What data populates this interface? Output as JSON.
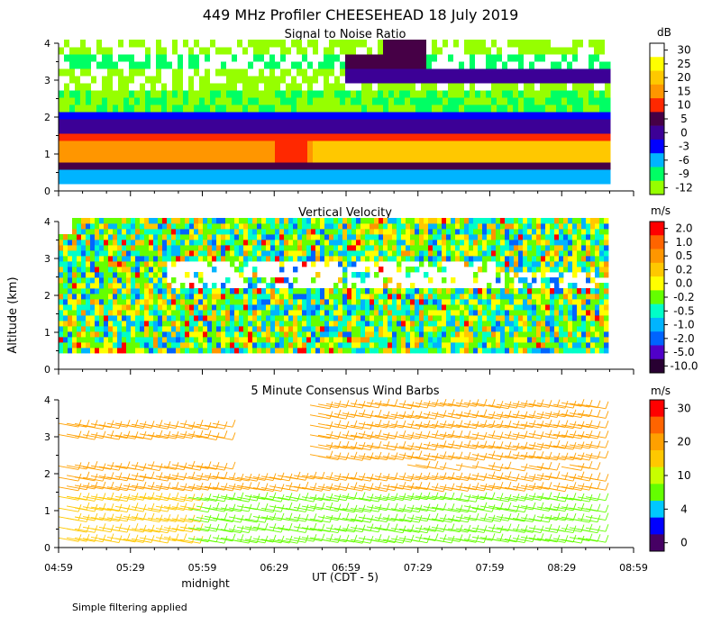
{
  "title": "449 MHz Profiler CHEESEHEAD 18 July 2019",
  "y_axis_label": "Altitude (km)",
  "x_axis_label": "UT  (CDT - 5)",
  "midnight_label": "midnight",
  "footnote": "Simple filtering applied",
  "x_ticks": [
    "04:59",
    "05:29",
    "05:59",
    "06:29",
    "06:59",
    "07:29",
    "07:59",
    "08:29",
    "08:59"
  ],
  "y_ticks": [
    "0",
    "1",
    "2",
    "3",
    "4"
  ],
  "panels": [
    {
      "title": "Signal to Noise Ratio",
      "unit": "dB",
      "colorbar_labels": [
        "30",
        "25",
        "20",
        "15",
        "10",
        "5",
        "0",
        "-3",
        "-6",
        "-9",
        "-12"
      ],
      "colorbar_colors": [
        "#ffffff",
        "#ffff00",
        "#ffc800",
        "#ff9600",
        "#ff2800",
        "#460046",
        "#3c0096",
        "#0000ff",
        "#00b4ff",
        "#00ff64",
        "#96ff00"
      ]
    },
    {
      "title": "Vertical Velocity",
      "unit": "m/s",
      "colorbar_labels": [
        "2.0",
        "1.0",
        "0.5",
        "0.2",
        "0.0",
        "-0.2",
        "-0.5",
        "-1.0",
        "-2.0",
        "-5.0",
        "-10.0"
      ],
      "colorbar_colors": [
        "#ff0000",
        "#ff6400",
        "#ff9600",
        "#ffc800",
        "#ffff00",
        "#64ff00",
        "#00ffc8",
        "#00b4ff",
        "#0064ff",
        "#5000c8",
        "#280032"
      ]
    },
    {
      "title": "5 Minute Consensus Wind Barbs",
      "unit": "m/s",
      "colorbar_labels": [
        "30",
        "20",
        "10",
        "4",
        "0"
      ],
      "colorbar_colors": [
        "#ff0000",
        "#ff6400",
        "#ffa000",
        "#ffc800",
        "#c8ff00",
        "#64ff00",
        "#00c8ff",
        "#0000ff",
        "#460064"
      ]
    }
  ],
  "chart_data": {
    "type": "heatmap",
    "x_range": [
      "04:59",
      "08:59"
    ],
    "data_x_range": [
      "04:59",
      "08:47"
    ],
    "y_range_km": [
      0,
      4
    ],
    "snr_db_profile": [
      {
        "alt_km": 0.5,
        "db": 5
      },
      {
        "alt_km": 0.8,
        "db": 12
      },
      {
        "alt_km": 1.2,
        "db": 12
      },
      {
        "alt_km": 1.6,
        "db": 5
      },
      {
        "alt_km": 2.0,
        "db": -6
      },
      {
        "alt_km": 2.5,
        "db": -12
      },
      {
        "alt_km": 3.0,
        "db": -9
      },
      {
        "alt_km": 3.5,
        "db": 0
      },
      {
        "alt_km": 4.0,
        "db": -6
      }
    ],
    "vertical_velocity_ms_range": [
      -1.0,
      0.5
    ],
    "wind_speed_ms_layers": [
      {
        "alt_km": 0.5,
        "ms": 12
      },
      {
        "alt_km": 1.5,
        "ms": 15
      },
      {
        "alt_km": 2.2,
        "ms": 20
      },
      {
        "alt_km": 3.2,
        "ms": 20
      },
      {
        "alt_km": 3.8,
        "ms": 22
      }
    ]
  }
}
